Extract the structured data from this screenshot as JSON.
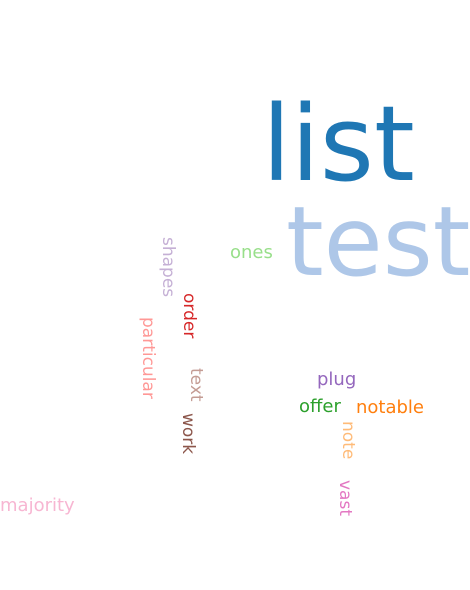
{
  "word_cloud": {
    "words": [
      {
        "text": "list",
        "color": "#1f77b4",
        "orientation": "horizontal"
      },
      {
        "text": "test",
        "color": "#aec7e8",
        "orientation": "horizontal"
      },
      {
        "text": "ones",
        "color": "#98df8a",
        "orientation": "horizontal"
      },
      {
        "text": "shapes",
        "color": "#c5b0d5",
        "orientation": "vertical"
      },
      {
        "text": "order",
        "color": "#d62728",
        "orientation": "vertical"
      },
      {
        "text": "particular",
        "color": "#ff9896",
        "orientation": "vertical"
      },
      {
        "text": "text",
        "color": "#c49c94",
        "orientation": "vertical"
      },
      {
        "text": "work",
        "color": "#8c564b",
        "orientation": "vertical"
      },
      {
        "text": "plug",
        "color": "#9467bd",
        "orientation": "horizontal"
      },
      {
        "text": "offer",
        "color": "#2ca02c",
        "orientation": "horizontal"
      },
      {
        "text": "notable",
        "color": "#ff7f0e",
        "orientation": "horizontal"
      },
      {
        "text": "note",
        "color": "#ffbb78",
        "orientation": "vertical"
      },
      {
        "text": "vast",
        "color": "#e377c2",
        "orientation": "vertical"
      },
      {
        "text": "majority",
        "color": "#f7b6d2",
        "orientation": "horizontal"
      }
    ]
  }
}
